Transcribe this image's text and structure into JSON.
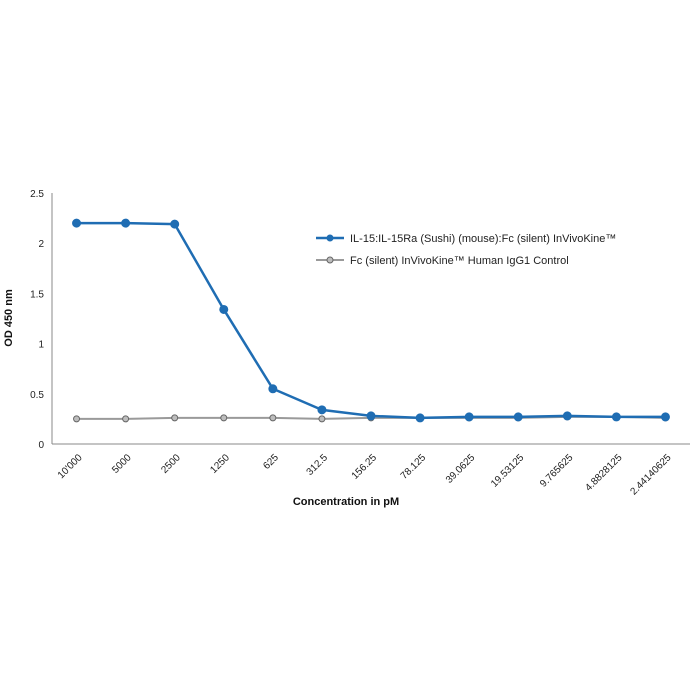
{
  "chart_data": {
    "type": "line",
    "xlabel": "Concentration in pM",
    "ylabel": "OD 450 nm",
    "categories": [
      "10'000",
      "5000",
      "2500",
      "1250",
      "625",
      "312.5",
      "156.25",
      "78.125",
      "39.0625",
      "19.53125",
      "9.765625",
      "4.8828125",
      "2.44140625"
    ],
    "ylim": [
      0,
      2.5
    ],
    "yticks": [
      "0",
      "0.5",
      "1",
      "1.5",
      "2",
      "2.5"
    ],
    "grid": false,
    "legend_position": "top-right",
    "series": [
      {
        "name": "IL-15:IL-15Ra (Sushi) (mouse):Fc (silent) InVivoKine™",
        "color": "#1f6db3",
        "marker_fill": "#1f6db3",
        "values": [
          2.2,
          2.2,
          2.19,
          1.34,
          0.55,
          0.34,
          0.28,
          0.26,
          0.27,
          0.27,
          0.28,
          0.27,
          0.27
        ]
      },
      {
        "name": "Fc (silent) InVivoKine™ Human IgG1 Control",
        "color": "#9a9a9a",
        "marker_fill": "#bdbdbd",
        "values": [
          0.25,
          0.25,
          0.26,
          0.26,
          0.26,
          0.25,
          0.26,
          0.26,
          0.26,
          0.26,
          0.27,
          0.27,
          0.26
        ]
      }
    ]
  }
}
